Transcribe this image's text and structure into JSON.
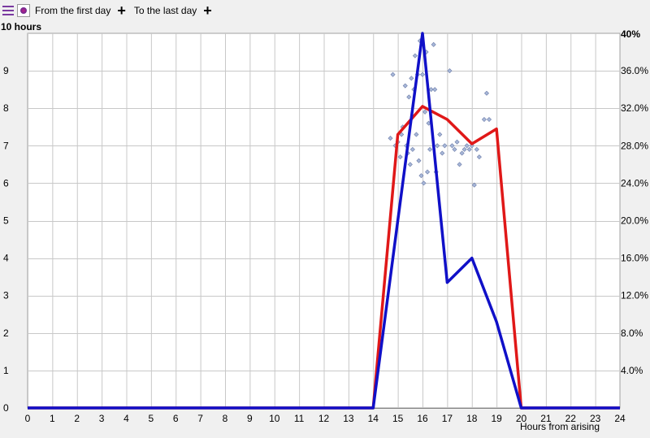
{
  "toolbar": {
    "icons": [
      "menu-icon",
      "app-icon",
      "plus-icon"
    ],
    "from_label": "From the first day",
    "to_label": "To the last day",
    "plus_symbol": "+"
  },
  "chart_data": {
    "type": "line",
    "title": "",
    "left_axis_label": "10 hours",
    "right_axis_top_label": "40%",
    "xlabel": "Hours from arising",
    "x_ticks": [
      0,
      1,
      2,
      3,
      4,
      5,
      6,
      7,
      8,
      9,
      10,
      11,
      12,
      13,
      14,
      15,
      16,
      17,
      18,
      19,
      20,
      21,
      22,
      23,
      24
    ],
    "xlim": [
      0,
      24
    ],
    "ylim_left": [
      0,
      10
    ],
    "y_ticks_left": [
      0,
      1,
      2,
      3,
      4,
      5,
      6,
      7,
      8,
      9
    ],
    "ylim_right": [
      0,
      40
    ],
    "y_ticks_right": [
      "4.0%",
      "8.0%",
      "12.0%",
      "16.0%",
      "20.0%",
      "24.0%",
      "28.0%",
      "32.0%",
      "36.0%"
    ],
    "grid": true,
    "colors": {
      "red_series": "#e01818",
      "blue_series": "#1010c8",
      "points": "#a8b8d8",
      "grid": "#c8c8c8"
    },
    "series": [
      {
        "axis": "left",
        "color": "#e01818",
        "x": [
          0,
          1,
          2,
          3,
          4,
          5,
          6,
          7,
          8,
          9,
          10,
          11,
          12,
          13,
          14,
          15,
          16,
          17,
          18,
          19,
          20,
          21,
          22,
          23,
          24
        ],
        "values": [
          0,
          0,
          0,
          0,
          0,
          0,
          0,
          0,
          0,
          0,
          0,
          0,
          0,
          0,
          0,
          7.3,
          8.05,
          7.7,
          7.05,
          7.45,
          0,
          0,
          0,
          0,
          0
        ]
      },
      {
        "axis": "right",
        "color": "#1010c8",
        "x": [
          0,
          1,
          2,
          3,
          4,
          5,
          6,
          7,
          8,
          9,
          10,
          11,
          12,
          13,
          14,
          15,
          16,
          17,
          18,
          19,
          20,
          21,
          22,
          23,
          24
        ],
        "values": [
          0,
          0,
          0,
          0,
          0,
          0,
          0,
          0,
          0,
          0,
          0,
          0,
          0,
          0,
          0,
          20.0,
          40.0,
          13.4,
          16.0,
          9.2,
          0,
          0,
          0,
          0,
          0
        ]
      }
    ],
    "scatter_points": [
      [
        14.7,
        7.2
      ],
      [
        14.8,
        8.9
      ],
      [
        14.9,
        7.0
      ],
      [
        15.0,
        7.1
      ],
      [
        15.1,
        6.7
      ],
      [
        15.15,
        7.3
      ],
      [
        15.2,
        7.5
      ],
      [
        15.3,
        8.6
      ],
      [
        15.35,
        7.0
      ],
      [
        15.4,
        6.8
      ],
      [
        15.45,
        8.3
      ],
      [
        15.5,
        6.5
      ],
      [
        15.55,
        8.8
      ],
      [
        15.6,
        6.9
      ],
      [
        15.65,
        8.5
      ],
      [
        15.7,
        9.4
      ],
      [
        15.75,
        7.3
      ],
      [
        15.8,
        8.9
      ],
      [
        15.85,
        6.6
      ],
      [
        15.9,
        9.8
      ],
      [
        15.95,
        6.2
      ],
      [
        16.0,
        8.9
      ],
      [
        16.05,
        6.0
      ],
      [
        16.1,
        7.9
      ],
      [
        16.15,
        9.5
      ],
      [
        16.2,
        6.3
      ],
      [
        16.25,
        7.6
      ],
      [
        16.3,
        6.9
      ],
      [
        16.35,
        8.5
      ],
      [
        16.45,
        9.7
      ],
      [
        16.5,
        8.5
      ],
      [
        16.55,
        6.3
      ],
      [
        16.6,
        7.0
      ],
      [
        16.7,
        7.3
      ],
      [
        16.8,
        6.8
      ],
      [
        16.9,
        7.0
      ],
      [
        17.1,
        9.0
      ],
      [
        17.2,
        7.0
      ],
      [
        17.3,
        6.9
      ],
      [
        17.4,
        7.1
      ],
      [
        17.5,
        6.5
      ],
      [
        17.6,
        6.8
      ],
      [
        17.7,
        6.9
      ],
      [
        17.8,
        7.0
      ],
      [
        17.9,
        6.9
      ],
      [
        18.0,
        7.0
      ],
      [
        18.1,
        5.95
      ],
      [
        18.2,
        6.9
      ],
      [
        18.3,
        6.7
      ],
      [
        18.5,
        7.7
      ],
      [
        18.6,
        8.4
      ],
      [
        18.7,
        7.7
      ]
    ]
  }
}
